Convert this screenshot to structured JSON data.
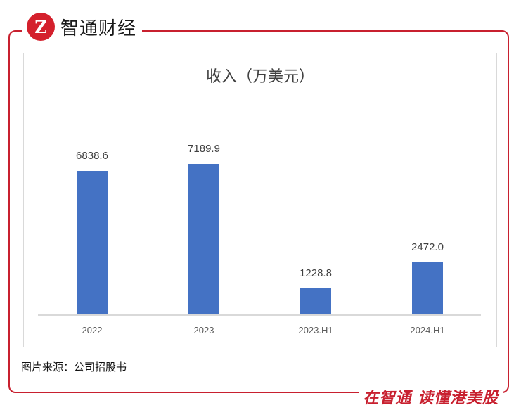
{
  "brand": {
    "logo_glyph": "Z",
    "name": "智通财经",
    "accent_color": "#c8202f"
  },
  "chart": {
    "title": "收入（万美元）"
  },
  "chart_data": {
    "type": "bar",
    "title": "收入（万美元）",
    "categories": [
      "2022",
      "2023",
      "2023.H1",
      "2024.H1"
    ],
    "values": [
      6838.6,
      7189.9,
      1228.8,
      2472.0
    ],
    "value_labels": [
      "6838.6",
      "7189.9",
      "1228.8",
      "2472.0"
    ],
    "xlabel": "",
    "ylabel": "",
    "ylim": [
      0,
      8000
    ],
    "grid": false,
    "legend": null,
    "bar_color": "#4472c4"
  },
  "footer": {
    "source": "图片来源：公司招股书",
    "slogan": "在智通  读懂港美股"
  }
}
